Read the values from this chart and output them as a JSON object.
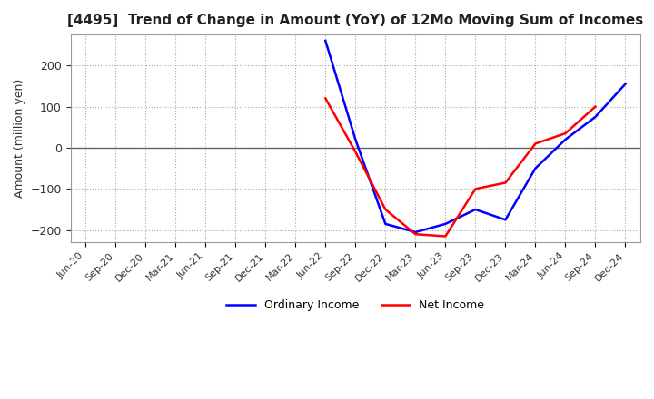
{
  "title": "[4495]  Trend of Change in Amount (YoY) of 12Mo Moving Sum of Incomes",
  "ylabel": "Amount (million yen)",
  "background_color": "#ffffff",
  "grid_color": "#aaaaaa",
  "x_labels": [
    "Jun-20",
    "Sep-20",
    "Dec-20",
    "Mar-21",
    "Jun-21",
    "Sep-21",
    "Dec-21",
    "Mar-22",
    "Jun-22",
    "Sep-22",
    "Dec-22",
    "Mar-23",
    "Jun-23",
    "Sep-23",
    "Dec-23",
    "Mar-24",
    "Jun-24",
    "Sep-24",
    "Dec-24"
  ],
  "ordinary_income": [
    null,
    null,
    null,
    null,
    null,
    null,
    null,
    null,
    260,
    20,
    -185,
    -205,
    -185,
    -150,
    -175,
    -50,
    20,
    75,
    155
  ],
  "net_income": [
    null,
    null,
    null,
    null,
    null,
    null,
    null,
    null,
    120,
    -10,
    -150,
    -210,
    -215,
    -100,
    -85,
    10,
    35,
    100,
    null
  ],
  "ylim": [
    -230,
    275
  ],
  "yticks": [
    -200,
    -100,
    0,
    100,
    200
  ],
  "ordinary_income_color": "#0000ff",
  "net_income_color": "#ff0000",
  "legend_labels": [
    "Ordinary Income",
    "Net Income"
  ]
}
